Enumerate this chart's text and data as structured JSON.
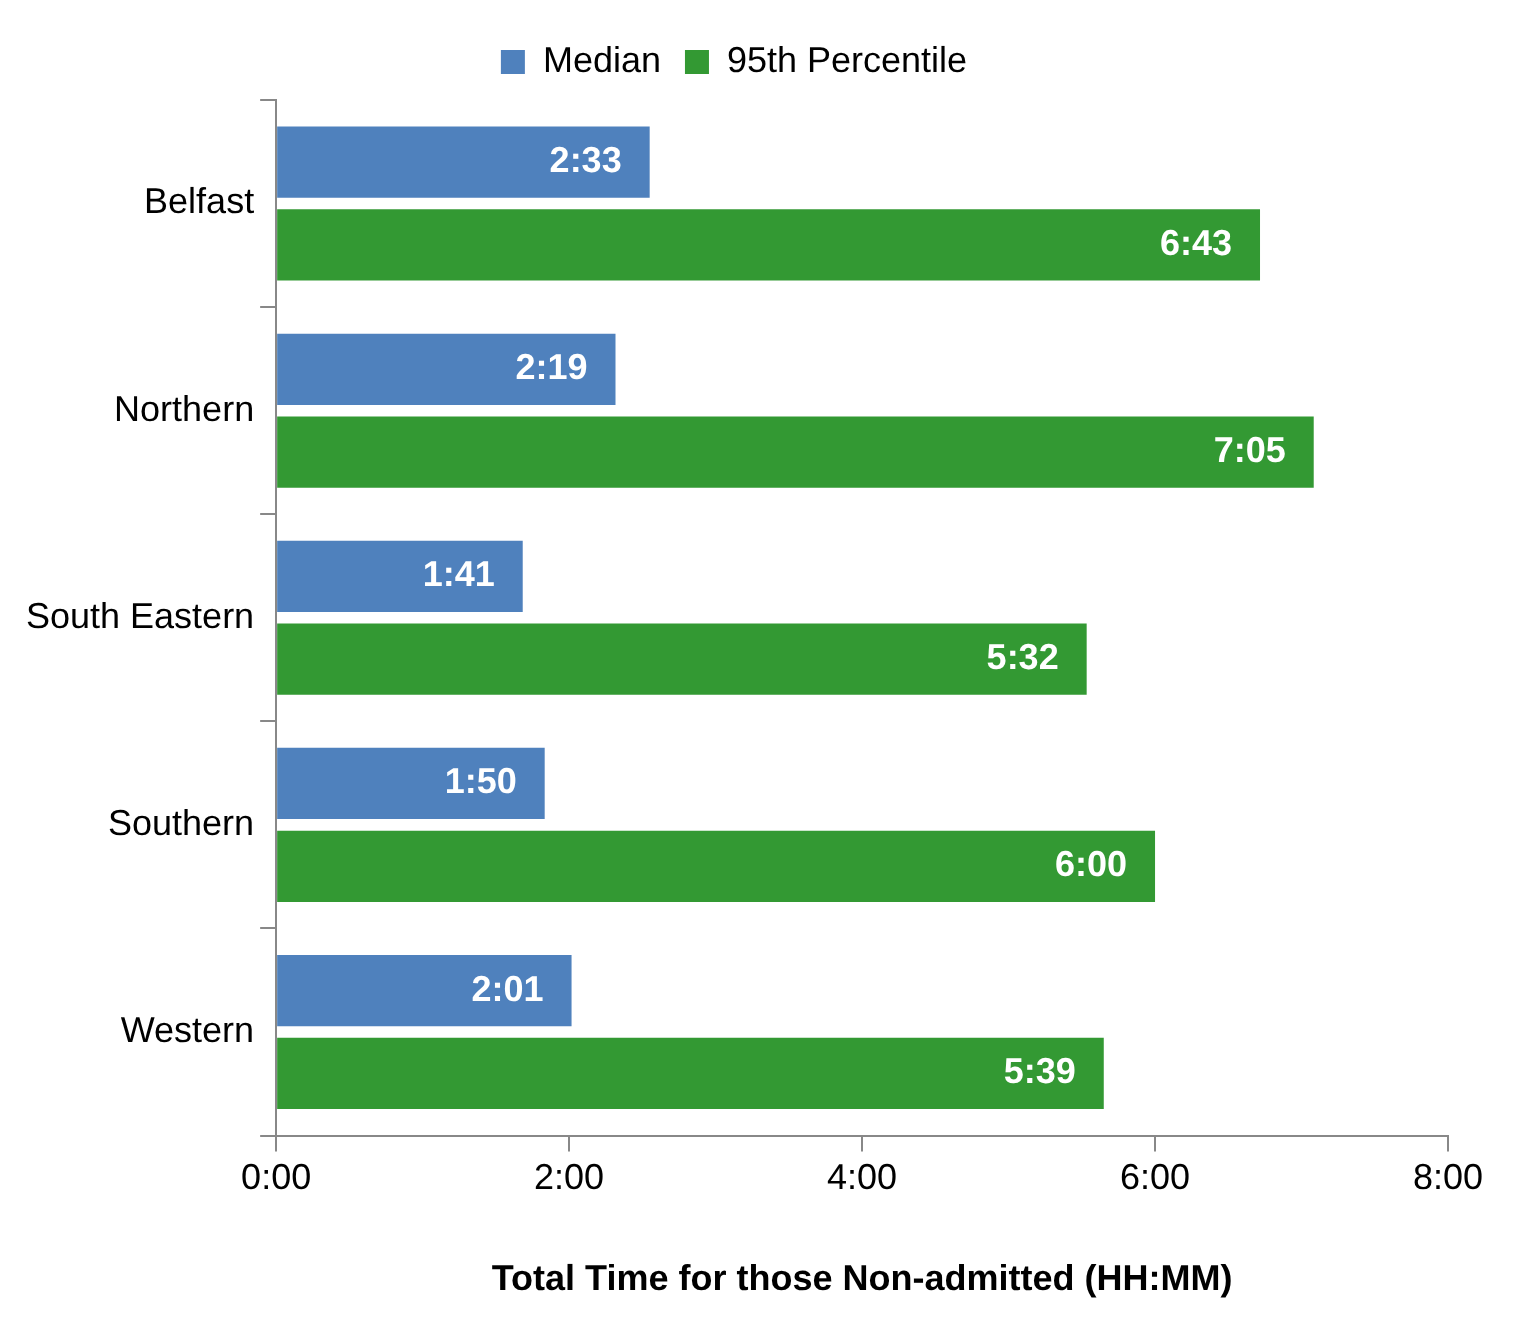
{
  "chart_data": {
    "type": "bar",
    "orientation": "horizontal",
    "xlabel": "Total Time for those Non-admitted (HH:MM)",
    "categories": [
      "Belfast",
      "Northern",
      "South Eastern",
      "Southern",
      "Western"
    ],
    "series": [
      {
        "name": "Median",
        "color": "#4f81bd",
        "values": [
          2.55,
          2.3167,
          1.6833,
          1.8333,
          2.0167
        ],
        "value_labels": [
          "2:33",
          "2:19",
          "1:41",
          "1:50",
          "2:01"
        ]
      },
      {
        "name": "95th Percentile",
        "color": "#339933",
        "values": [
          6.7167,
          7.0833,
          5.5333,
          6,
          5.65
        ],
        "value_labels": [
          "6:43",
          "7:05",
          "5:32",
          "6:00",
          "5:39"
        ]
      }
    ],
    "xlim": [
      0,
      8
    ],
    "xticks": [
      {
        "value": 0,
        "label": "0:00"
      },
      {
        "value": 2,
        "label": "2:00"
      },
      {
        "value": 4,
        "label": "4:00"
      },
      {
        "value": 6,
        "label": "6:00"
      },
      {
        "value": 8,
        "label": "8:00"
      }
    ],
    "grid": false,
    "legend": "top"
  }
}
